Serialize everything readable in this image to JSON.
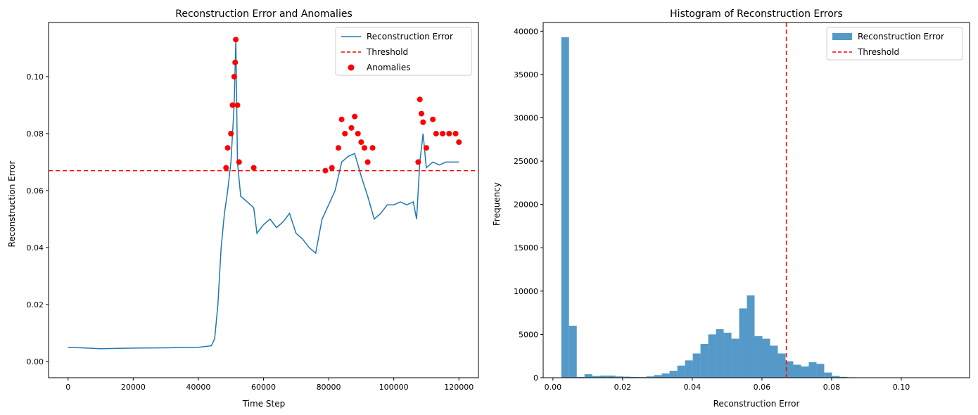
{
  "chart_data": [
    {
      "type": "line",
      "title": "Reconstruction Error and Anomalies",
      "xlabel": "Time Step",
      "ylabel": "Reconstruction Error",
      "xlim": [
        -6000,
        126000
      ],
      "ylim": [
        -0.0057,
        0.119
      ],
      "xticks": [
        0,
        20000,
        40000,
        60000,
        80000,
        100000,
        120000
      ],
      "xtick_labels": [
        "0",
        "20000",
        "40000",
        "60000",
        "80000",
        "100000",
        "120000"
      ],
      "yticks": [
        0.0,
        0.02,
        0.04,
        0.06,
        0.08,
        0.1
      ],
      "ytick_labels": [
        "0.00",
        "0.02",
        "0.04",
        "0.06",
        "0.08",
        "0.10"
      ],
      "legend_position": "top-right",
      "legend": [
        {
          "label": "Reconstruction Error",
          "style": "line",
          "color": "#1f77b4"
        },
        {
          "label": "Threshold",
          "style": "dashed",
          "color": "#ff0000"
        },
        {
          "label": "Anomalies",
          "style": "marker",
          "color": "#ff0000"
        }
      ],
      "threshold": 0.067,
      "series": [
        {
          "name": "Reconstruction Error",
          "color": "#1f77b4",
          "points": [
            [
              0,
              0.005
            ],
            [
              10000,
              0.0045
            ],
            [
              20000,
              0.0047
            ],
            [
              30000,
              0.0048
            ],
            [
              40000,
              0.005
            ],
            [
              44000,
              0.0055
            ],
            [
              45000,
              0.008
            ],
            [
              46000,
              0.02
            ],
            [
              47000,
              0.04
            ],
            [
              48000,
              0.052
            ],
            [
              49000,
              0.06
            ],
            [
              50000,
              0.07
            ],
            [
              51000,
              0.09
            ],
            [
              51500,
              0.113
            ],
            [
              52000,
              0.07
            ],
            [
              53000,
              0.058
            ],
            [
              55000,
              0.056
            ],
            [
              57000,
              0.054
            ],
            [
              58000,
              0.045
            ],
            [
              60000,
              0.048
            ],
            [
              62000,
              0.05
            ],
            [
              64000,
              0.047
            ],
            [
              66000,
              0.049
            ],
            [
              68000,
              0.052
            ],
            [
              70000,
              0.045
            ],
            [
              72000,
              0.043
            ],
            [
              74000,
              0.04
            ],
            [
              76000,
              0.038
            ],
            [
              78000,
              0.05
            ],
            [
              80000,
              0.055
            ],
            [
              82000,
              0.06
            ],
            [
              84000,
              0.07
            ],
            [
              86000,
              0.072
            ],
            [
              88000,
              0.073
            ],
            [
              90000,
              0.065
            ],
            [
              92000,
              0.058
            ],
            [
              94000,
              0.05
            ],
            [
              96000,
              0.052
            ],
            [
              98000,
              0.055
            ],
            [
              100000,
              0.055
            ],
            [
              102000,
              0.056
            ],
            [
              104000,
              0.055
            ],
            [
              106000,
              0.056
            ],
            [
              107000,
              0.05
            ],
            [
              108000,
              0.07
            ],
            [
              109000,
              0.08
            ],
            [
              110000,
              0.068
            ],
            [
              112000,
              0.07
            ],
            [
              114000,
              0.069
            ],
            [
              116000,
              0.07
            ],
            [
              118000,
              0.07
            ],
            [
              120000,
              0.07
            ]
          ]
        },
        {
          "name": "Anomalies",
          "color": "#ff0000",
          "points": [
            [
              48500,
              0.068
            ],
            [
              49000,
              0.075
            ],
            [
              50000,
              0.08
            ],
            [
              50500,
              0.09
            ],
            [
              51000,
              0.1
            ],
            [
              51300,
              0.105
            ],
            [
              51500,
              0.113
            ],
            [
              52000,
              0.09
            ],
            [
              52500,
              0.07
            ],
            [
              57000,
              0.068
            ],
            [
              79000,
              0.067
            ],
            [
              81000,
              0.068
            ],
            [
              83000,
              0.075
            ],
            [
              84000,
              0.085
            ],
            [
              85000,
              0.08
            ],
            [
              87000,
              0.082
            ],
            [
              88000,
              0.086
            ],
            [
              89000,
              0.08
            ],
            [
              90000,
              0.077
            ],
            [
              91000,
              0.075
            ],
            [
              92000,
              0.07
            ],
            [
              93500,
              0.075
            ],
            [
              107500,
              0.07
            ],
            [
              108000,
              0.092
            ],
            [
              108500,
              0.087
            ],
            [
              109000,
              0.084
            ],
            [
              110000,
              0.075
            ],
            [
              112000,
              0.085
            ],
            [
              113000,
              0.08
            ],
            [
              115000,
              0.08
            ],
            [
              117000,
              0.08
            ],
            [
              119000,
              0.08
            ],
            [
              120000,
              0.077
            ]
          ]
        }
      ]
    },
    {
      "type": "bar",
      "title": "Histogram of Reconstruction Errors",
      "xlabel": "Reconstruction Error",
      "ylabel": "Frequency",
      "xlim": [
        -0.0028,
        0.1196
      ],
      "ylim": [
        0,
        41000
      ],
      "xticks": [
        0.0,
        0.02,
        0.04,
        0.06,
        0.08,
        0.1
      ],
      "xtick_labels": [
        "0.00",
        "0.02",
        "0.04",
        "0.06",
        "0.08",
        "0.10"
      ],
      "yticks": [
        0,
        5000,
        10000,
        15000,
        20000,
        25000,
        30000,
        35000,
        40000
      ],
      "ytick_labels": [
        "0",
        "5000",
        "10000",
        "15000",
        "20000",
        "25000",
        "30000",
        "35000",
        "40000"
      ],
      "legend_position": "top-right",
      "legend": [
        {
          "label": "Reconstruction Error",
          "style": "patch",
          "color": "#5599c8"
        },
        {
          "label": "Threshold",
          "style": "dashed",
          "color": "#ff0000"
        }
      ],
      "threshold": 0.067,
      "bin_start": 0.0024,
      "bin_width": 0.00222,
      "values": [
        39300,
        6000,
        80,
        400,
        200,
        250,
        250,
        150,
        120,
        80,
        70,
        150,
        300,
        500,
        800,
        1400,
        2000,
        2800,
        3900,
        5000,
        5600,
        5200,
        4500,
        8000,
        9500,
        4800,
        4500,
        3700,
        2800,
        1900,
        1500,
        1300,
        1800,
        1600,
        600,
        200,
        100,
        50,
        30,
        20,
        10,
        10,
        5,
        5,
        5,
        5,
        5,
        5,
        5,
        5
      ]
    }
  ]
}
